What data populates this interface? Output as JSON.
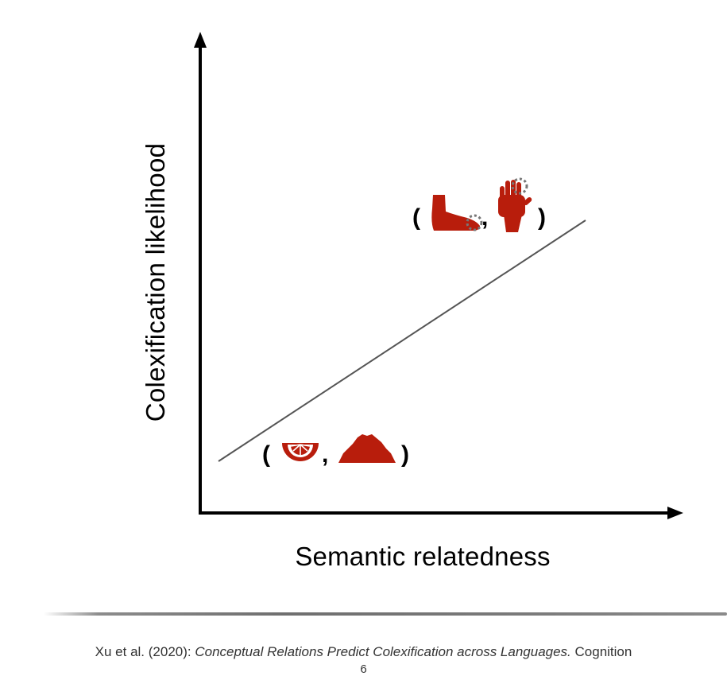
{
  "figure": {
    "y_axis_label": "Colexification likelihood",
    "x_axis_label": "Semantic relatedness",
    "colors": {
      "axis": "#000000",
      "trend_line": "#555555",
      "icon_fill": "#b81d0c",
      "icon_highlight": "#777777"
    },
    "pairs": [
      {
        "open": "(",
        "separator": ",",
        "close": ")",
        "icons": [
          "orange-slice-icon",
          "mountain-icon"
        ]
      },
      {
        "open": "(",
        "separator": ",",
        "close": ")",
        "icons": [
          "foot-icon",
          "hand-icon"
        ]
      }
    ]
  },
  "footer": {
    "citation_authors": "Xu et al. (2020): ",
    "citation_title": "Conceptual Relations Predict Colexification across Languages.",
    "citation_venue": " Cognition",
    "page_number": "6"
  }
}
